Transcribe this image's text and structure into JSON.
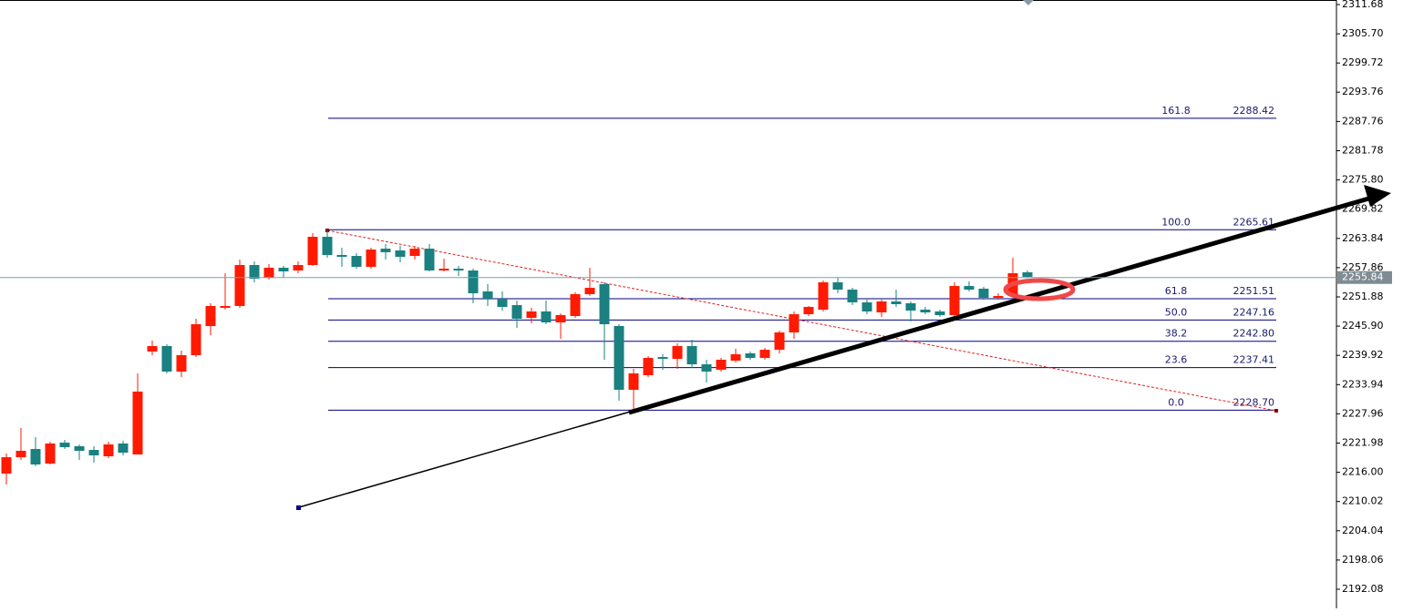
{
  "chart_data": {
    "type": "candlestick",
    "up_color": "#ff1a00",
    "down_color": "#1a8080",
    "ylim": [
      2188.17,
      2312.61
    ],
    "yticks": [
      2311.68,
      {
        "value": 2305.7,
        "label": "2305.70"
      },
      2299.72,
      2293.76,
      2287.76,
      2281.78,
      {
        "value": 2275.8,
        "label": "2275.80"
      },
      2269.82,
      2263.84,
      2257.86,
      2251.88,
      {
        "value": 2245.9,
        "label": "2245.90"
      },
      2239.92,
      2233.94,
      2227.96,
      2221.98,
      {
        "value": 2216,
        "label": "2216.00"
      },
      2210.02,
      2204.04,
      2198.06,
      2192.08
    ],
    "last_price": 2255.84,
    "open": [
      2215.74,
      2219.09,
      2220.77,
      2217.79,
      2222.07,
      2221.33,
      2220.58,
      2219.28,
      2221.89,
      2219.65,
      2240.7,
      2241.82,
      2236.6,
      2239.96,
      2245.92,
      2249.64,
      2250.02,
      2258.4,
      2255.79,
      2257.84,
      2257.28,
      2258.4,
      2264.17,
      2260.45,
      2260.26,
      2258.03,
      2261.75,
      2261.38,
      2260.26,
      2261.75,
      2257.28,
      2257.65,
      2257.28,
      2253.0,
      2251.51,
      2250.2,
      2247.59,
      2248.9,
      2246.66,
      2247.97,
      2252.44,
      2254.49,
      2245.92,
      2232.88,
      2235.86,
      2239.58,
      2239.21,
      2241.82,
      2238.09,
      2236.98,
      2238.84,
      2240.33,
      2239.4,
      2241.07,
      2244.61,
      2248.34,
      2249.27,
      2254.86,
      2253.37,
      2250.76,
      2248.71,
      2250.95,
      2250.58,
      2249.27,
      2248.9,
      2248.15,
      2254.11,
      2253.56,
      2251.69,
      2252.07,
      2256.91
    ],
    "high": [
      2219.84,
      2225.05,
      2223.19,
      2222.26,
      2222.63,
      2221.7,
      2221.33,
      2222.26,
      2222.45,
      2236.23,
      2242.94,
      2242.19,
      2240.89,
      2247.41,
      2250.58,
      2256.72,
      2259.52,
      2259.14,
      2258.59,
      2258.21,
      2259.14,
      2264.92,
      2265.48,
      2261.94,
      2260.82,
      2261.94,
      2262.68,
      2262.31,
      2262.31,
      2262.68,
      2259.7,
      2258.21,
      2257.65,
      2254.49,
      2253.0,
      2251.13,
      2249.64,
      2251.13,
      2248.53,
      2252.81,
      2257.84,
      2254.86,
      2246.29,
      2237.16,
      2239.77,
      2240.14,
      2242.38,
      2243.12,
      2239.03,
      2239.4,
      2241.26,
      2240.7,
      2241.45,
      2244.99,
      2248.9,
      2250.02,
      2255.23,
      2255.79,
      2253.74,
      2251.32,
      2251.32,
      2253.37,
      2250.95,
      2249.83,
      2249.27,
      2254.86,
      2255.05,
      2253.93,
      2252.62,
      2259.89,
      2257.28
    ],
    "low": [
      2213.5,
      2218.53,
      2217.23,
      2217.6,
      2220.77,
      2218.53,
      2217.97,
      2218.91,
      2219.46,
      2219.65,
      2239.96,
      2236.23,
      2235.49,
      2239.58,
      2244.06,
      2249.27,
      2249.64,
      2254.86,
      2255.42,
      2255.79,
      2256.72,
      2258.21,
      2259.89,
      2258.03,
      2257.65,
      2257.65,
      2259.52,
      2258.96,
      2259.52,
      2257.1,
      2257.1,
      2256.16,
      2250.58,
      2250.02,
      2249.08,
      2245.55,
      2246.48,
      2246.29,
      2243.31,
      2247.59,
      2252.07,
      2239.03,
      2230.64,
      2228.59,
      2235.49,
      2236.98,
      2237.16,
      2237.35,
      2234.37,
      2236.6,
      2238.47,
      2239.03,
      2239.03,
      2240.33,
      2243.31,
      2247.97,
      2248.9,
      2252.62,
      2250.2,
      2248.34,
      2247.78,
      2249.83,
      2246.85,
      2248.34,
      2247.78,
      2247.78,
      2253.0,
      2251.32,
      2251.32,
      2251.69,
      2255.79
    ],
    "close": [
      2219.09,
      2220.4,
      2217.6,
      2221.89,
      2221.14,
      2220.4,
      2219.46,
      2221.7,
      2220.02,
      2232.51,
      2241.82,
      2236.6,
      2239.96,
      2246.29,
      2250.02,
      2250.02,
      2258.4,
      2255.61,
      2257.84,
      2257.1,
      2258.4,
      2264.17,
      2260.45,
      2260.08,
      2258.03,
      2261.57,
      2261.01,
      2260.08,
      2261.75,
      2257.28,
      2257.65,
      2257.28,
      2252.62,
      2251.51,
      2249.83,
      2247.41,
      2248.9,
      2246.66,
      2248.15,
      2252.44,
      2253.74,
      2246.29,
      2232.88,
      2236.23,
      2239.4,
      2239.21,
      2241.82,
      2238.09,
      2236.6,
      2239.03,
      2240.14,
      2239.4,
      2241.07,
      2244.61,
      2248.34,
      2249.83,
      2254.86,
      2253.37,
      2250.76,
      2248.9,
      2250.95,
      2250.39,
      2249.08,
      2248.71,
      2248.15,
      2254.11,
      2253.37,
      2251.69,
      2252.07,
      2256.72,
      2255.98
    ],
    "fibonacci": [
      {
        "level": "161.8",
        "price": 2288.42
      },
      {
        "level": "100.0",
        "price": 2265.61
      },
      {
        "level": "61.8",
        "price": 2251.51
      },
      {
        "level": "50.0",
        "price": 2247.16
      },
      {
        "level": "38.2",
        "price": {
          "value": 2242.8,
          "label": "2242.80"
        }
      },
      {
        "level": "23.6",
        "price": 2237.41
      },
      {
        "level": "0.0",
        "price": {
          "value": 2228.7,
          "label": "2228.70"
        }
      }
    ]
  }
}
